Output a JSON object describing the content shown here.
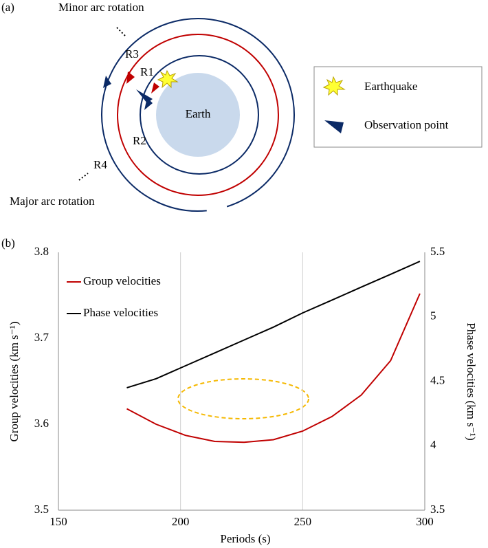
{
  "panel_labels": [
    "(a)",
    "(b)"
  ],
  "diagram": {
    "minor_arc": "Minor arc rotation",
    "major_arc": "Major arc rotation",
    "rays": [
      "R1",
      "R2",
      "R3",
      "R4"
    ],
    "earth": "Earth",
    "legend": [
      "Earthquake",
      "Observation point"
    ]
  },
  "chart_data": {
    "type": "line",
    "x": [
      178,
      190,
      202,
      214,
      226,
      238,
      250,
      262,
      274,
      286,
      298
    ],
    "series": [
      {
        "name": "Group velocities",
        "color": "#c00000",
        "values": [
          3.618,
          3.6,
          3.587,
          3.58,
          3.579,
          3.582,
          3.592,
          3.609,
          3.634,
          3.674,
          3.752
        ]
      },
      {
        "name": "Phase velocities",
        "color": "#000000",
        "axis": "y2",
        "values": [
          4.45,
          4.52,
          4.62,
          4.72,
          4.82,
          4.92,
          5.03,
          5.13,
          5.23,
          5.33,
          5.43
        ]
      }
    ],
    "x_label": "Periods (s)",
    "y_label": "Group velocities (km s⁻¹)",
    "y2_label": "Phase velocities (km s⁻¹)",
    "xlim": [
      150,
      300
    ],
    "xticks": [
      150,
      200,
      250,
      300
    ],
    "ylim": [
      3.5,
      3.8
    ],
    "yticks": [
      3.5,
      3.6,
      3.7,
      3.8
    ],
    "y2lim": [
      3.5,
      5.5
    ],
    "y2ticks": [
      3.5,
      4,
      4.5,
      5,
      5.5
    ],
    "grid": "x",
    "legend": "upper left"
  }
}
